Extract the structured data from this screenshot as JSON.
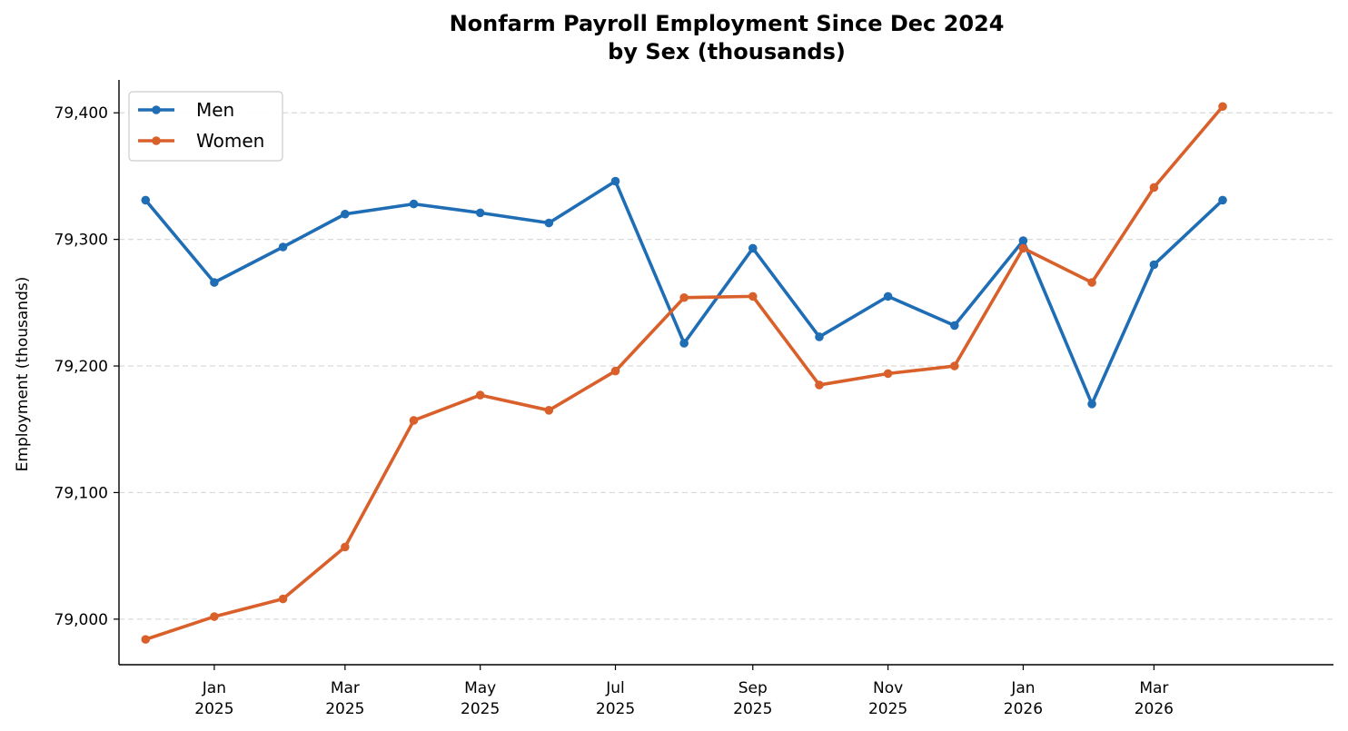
{
  "chart_data": {
    "type": "line",
    "title": "Nonfarm Payroll Employment Since Dec 2024",
    "subtitle": "by Sex (thousands)",
    "xlabel": "",
    "ylabel": "Employment (thousands)",
    "x": [
      "2024-12",
      "2025-01",
      "2025-02",
      "2025-03",
      "2025-04",
      "2025-05",
      "2025-06",
      "2025-07",
      "2025-08",
      "2025-09",
      "2025-10",
      "2025-11",
      "2025-12",
      "2026-01",
      "2026-02",
      "2026-03",
      "2026-04"
    ],
    "x_ticks": [
      {
        "x": "2025-01",
        "line1": "Jan",
        "line2": "2025"
      },
      {
        "x": "2025-03",
        "line1": "Mar",
        "line2": "2025"
      },
      {
        "x": "2025-05",
        "line1": "May",
        "line2": "2025"
      },
      {
        "x": "2025-07",
        "line1": "Jul",
        "line2": "2025"
      },
      {
        "x": "2025-09",
        "line1": "Sep",
        "line2": "2025"
      },
      {
        "x": "2025-11",
        "line1": "Nov",
        "line2": "2025"
      },
      {
        "x": "2026-01",
        "line1": "Jan",
        "line2": "2026"
      },
      {
        "x": "2026-03",
        "line1": "Mar",
        "line2": "2026"
      }
    ],
    "xlim": [
      "2024-11-19",
      "2026-05-21"
    ],
    "ylim": [
      78964,
      79426
    ],
    "y_ticks": [
      {
        "value": 79000,
        "label": "79,000"
      },
      {
        "value": 79100,
        "label": "79,100"
      },
      {
        "value": 79200,
        "label": "79,200"
      },
      {
        "value": 79300,
        "label": "79,300"
      },
      {
        "value": 79400,
        "label": "79,400"
      }
    ],
    "grid": "y-dashed",
    "legend_position": "top-left",
    "series": [
      {
        "name": "Men",
        "color": "#1f6db5",
        "values": [
          79331,
          79266,
          79294,
          79320,
          79328,
          79321,
          79313,
          79346,
          79218,
          79293,
          79223,
          79255,
          79232,
          79299,
          79170,
          79280,
          79331
        ]
      },
      {
        "name": "Women",
        "color": "#d9602b",
        "values": [
          78984,
          79002,
          79016,
          79057,
          79157,
          79177,
          79165,
          79196,
          79254,
          79255,
          79185,
          79194,
          79200,
          79293,
          79266,
          79341,
          79405
        ]
      }
    ]
  }
}
